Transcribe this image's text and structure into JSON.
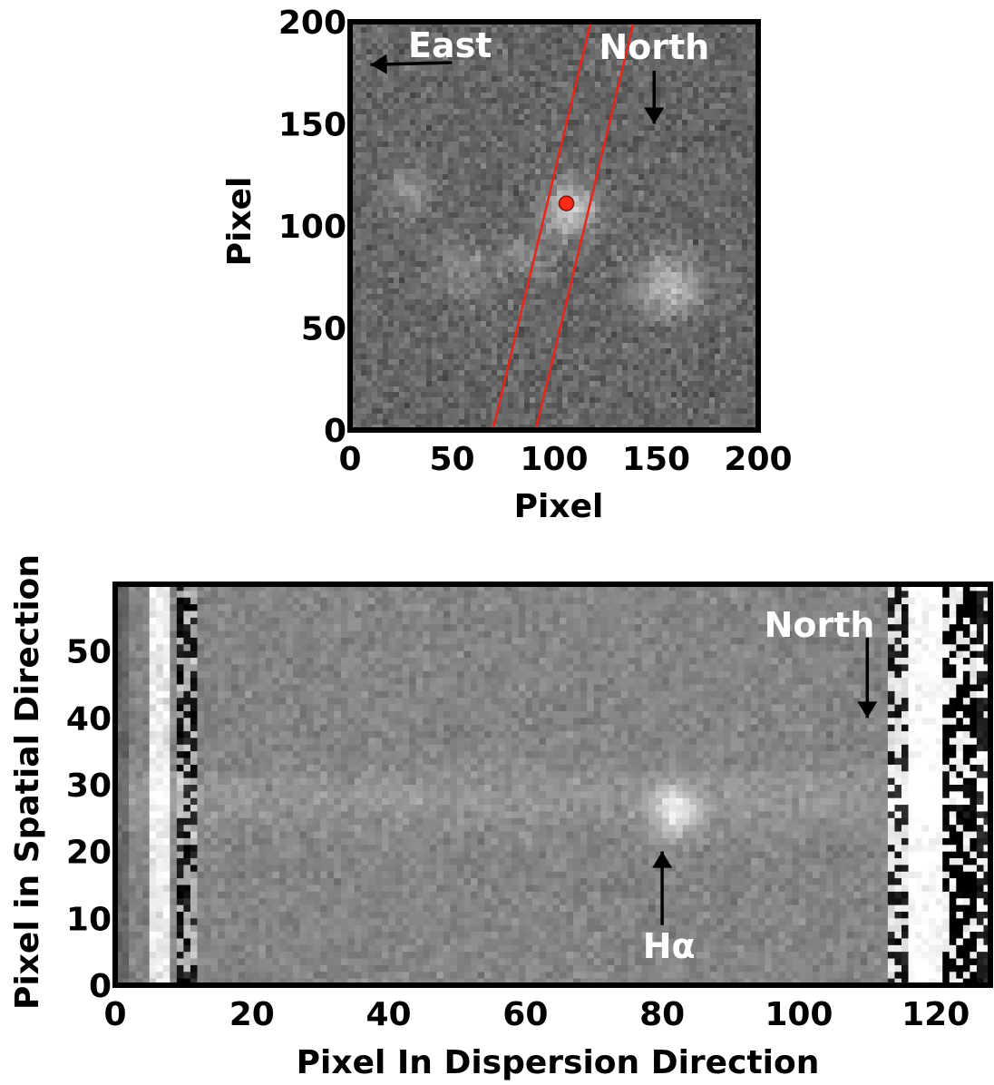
{
  "chart_data": [
    {
      "type": "image",
      "panel": "top",
      "xlabel": "Pixel",
      "ylabel": "Pixel",
      "xlim": [
        0,
        200
      ],
      "ylim": [
        0,
        200
      ],
      "xticks": [
        0,
        50,
        100,
        150,
        200
      ],
      "yticks": [
        0,
        50,
        100,
        150,
        200
      ],
      "grid": false,
      "colormap": "gray",
      "slit_edges": [
        {
          "x0": 70,
          "y0": 0,
          "x1": 118,
          "y1": 200
        },
        {
          "x0": 91,
          "y0": 0,
          "x1": 139,
          "y1": 200
        }
      ],
      "marker": {
        "x": 106,
        "y": 111,
        "color": "#ff2a1a"
      },
      "sources": [
        {
          "x": 108,
          "y": 108,
          "amp": 0.9,
          "sigma": 9
        },
        {
          "x": 157,
          "y": 70,
          "amp": 0.7,
          "sigma": 11
        },
        {
          "x": 88,
          "y": 85,
          "amp": 0.35,
          "sigma": 7
        },
        {
          "x": 28,
          "y": 118,
          "amp": 0.35,
          "sigma": 8
        },
        {
          "x": 55,
          "y": 78,
          "amp": 0.25,
          "sigma": 12
        }
      ],
      "annotations": [
        {
          "text": "East",
          "x": 49,
          "y": 189,
          "arrow": {
            "from": [
              50,
              180
            ],
            "to": [
              10,
              179
            ]
          }
        },
        {
          "text": "North",
          "x": 149,
          "y": 188,
          "arrow": {
            "from": [
              149,
              176
            ],
            "to": [
              149,
              150
            ]
          }
        }
      ],
      "colors": {
        "slit": "#e8251a",
        "annotation": "#ffffff",
        "arrow": "#000000"
      }
    },
    {
      "type": "image",
      "panel": "bottom",
      "xlabel": "Pixel In Dispersion Direction",
      "ylabel": "Pixel in Spatial Direction",
      "xlim": [
        0,
        128
      ],
      "ylim": [
        0,
        60
      ],
      "xticks": [
        0,
        20,
        40,
        60,
        80,
        100,
        120
      ],
      "yticks": [
        0,
        10,
        20,
        30,
        40,
        50
      ],
      "grid": false,
      "colormap": "gray",
      "trace_row": 28,
      "emission_line": {
        "x": 82,
        "y": 26
      },
      "annotations": [
        {
          "text": "North",
          "x": 103,
          "y": 54,
          "arrow": {
            "from": [
              110,
              52
            ],
            "to": [
              110,
              40
            ]
          }
        },
        {
          "text": "Hα",
          "x": 81,
          "y": 6,
          "arrow": {
            "from": [
              80,
              9
            ],
            "to": [
              80,
              20
            ]
          }
        }
      ],
      "colors": {
        "annotation": "#ffffff",
        "arrow": "#000000"
      }
    }
  ]
}
